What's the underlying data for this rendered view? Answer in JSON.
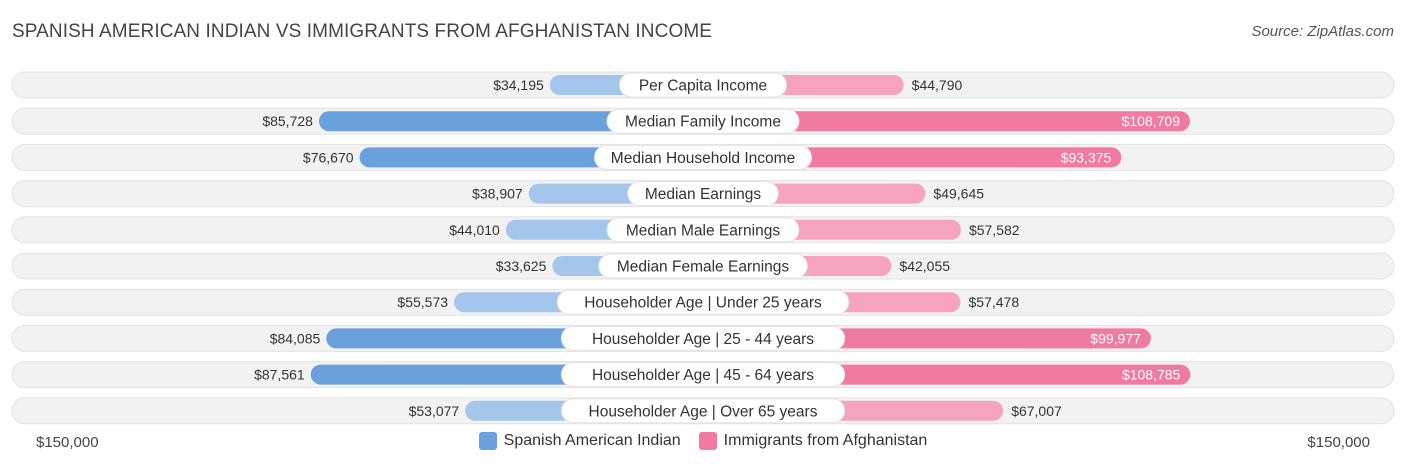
{
  "header": {
    "title": "SPANISH AMERICAN INDIAN VS IMMIGRANTS FROM AFGHANISTAN INCOME",
    "source": "Source: ZipAtlas.com"
  },
  "axis": {
    "left_label": "$150,000",
    "right_label": "$150,000"
  },
  "legend": [
    {
      "label": "Spanish American Indian",
      "color": "#6aa0dc"
    },
    {
      "label": "Immigrants from Afghanistan",
      "color": "#f07aa0"
    }
  ],
  "chart_data": {
    "type": "bar",
    "orientation": "diverging-horizontal",
    "title": "SPANISH AMERICAN INDIAN VS IMMIGRANTS FROM AFGHANISTAN INCOME",
    "categories": [
      "Per Capita Income",
      "Median Family Income",
      "Median Household Income",
      "Median Earnings",
      "Median Male Earnings",
      "Median Female Earnings",
      "Householder Age | Under 25 years",
      "Householder Age | 25 - 44 years",
      "Householder Age | 45 - 64 years",
      "Householder Age | Over 65 years"
    ],
    "series": [
      {
        "name": "Spanish American Indian",
        "side": "left",
        "color": "#6aa0dc",
        "color_light": "#a4c6ea",
        "values": [
          34195,
          85728,
          76670,
          38907,
          44010,
          33625,
          55573,
          84085,
          87561,
          53077
        ],
        "labels": [
          "$34,195",
          "$85,728",
          "$76,670",
          "$38,907",
          "$44,010",
          "$33,625",
          "$55,573",
          "$84,085",
          "$87,561",
          "$53,077"
        ]
      },
      {
        "name": "Immigrants from Afghanistan",
        "side": "right",
        "color": "#f07aa0",
        "color_light": "#f5a3bf",
        "values": [
          44790,
          108709,
          93375,
          49645,
          57582,
          42055,
          57478,
          99977,
          108785,
          67007
        ],
        "labels": [
          "$44,790",
          "$108,709",
          "$93,375",
          "$49,645",
          "$57,582",
          "$42,055",
          "$57,478",
          "$99,977",
          "$108,785",
          "$67,007"
        ]
      }
    ],
    "xlim": [
      0,
      150000
    ],
    "highlight_threshold": 70000,
    "legend_position": "bottom-center"
  }
}
